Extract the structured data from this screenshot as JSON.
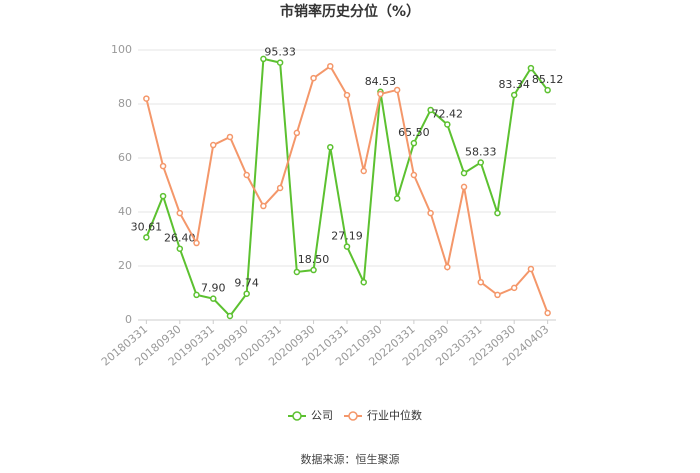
{
  "chart_data": {
    "type": "line",
    "title": "市销率历史分位（%）",
    "categories": [
      "20180331",
      null,
      "20180930",
      null,
      "20190331",
      null,
      "20190930",
      null,
      "20200331",
      null,
      "20200930",
      null,
      "20210331",
      null,
      "20210930",
      null,
      "20220331",
      null,
      "20220930",
      null,
      "20230331",
      null,
      "20230930",
      null,
      "20240403"
    ],
    "series": [
      {
        "name": "公司",
        "color": "#5cc130",
        "values": [
          30.61,
          45.9,
          26.4,
          9.3,
          7.9,
          1.5,
          9.74,
          96.7,
          95.33,
          17.8,
          18.5,
          64,
          27.19,
          14,
          84.53,
          45,
          65.5,
          77.8,
          72.42,
          54.4,
          58.33,
          39.6,
          83.34,
          93.3,
          85.12
        ],
        "value_labels": [
          "30.61",
          null,
          "26.40",
          null,
          "7.90",
          null,
          "9.74",
          null,
          "95.33",
          null,
          "18.50",
          null,
          "27.19",
          null,
          "84.53",
          null,
          "65.50",
          null,
          "72.42",
          null,
          "58.33",
          null,
          "83.34",
          null,
          "85.12"
        ]
      },
      {
        "name": "行业中位数",
        "color": "#f4976a",
        "values": [
          82,
          57,
          39.6,
          28.5,
          64.8,
          67.8,
          53.7,
          42.2,
          48.9,
          69.3,
          89.6,
          94,
          83.3,
          55.2,
          83.7,
          85.2,
          53.7,
          39.6,
          19.6,
          49.3,
          14,
          9.3,
          11.9,
          18.9,
          2.6
        ]
      }
    ],
    "ylim": [
      0,
      100
    ],
    "yticks": [
      0,
      20,
      40,
      60,
      80,
      100
    ],
    "grid": true,
    "legend": "bottom",
    "source": "数据来源：恒生聚源"
  }
}
